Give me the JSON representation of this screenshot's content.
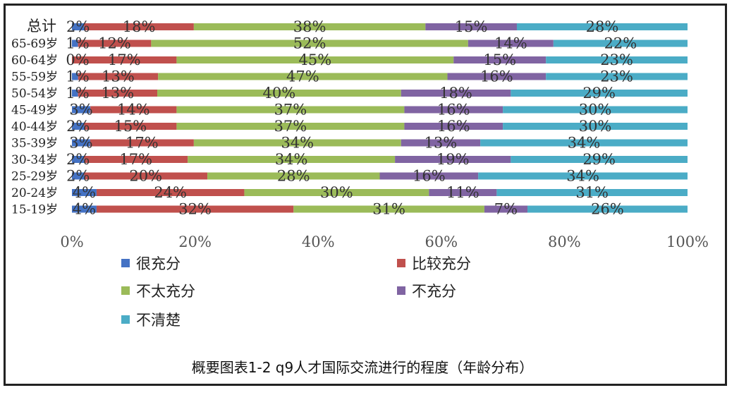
{
  "chart_data": {
    "type": "bar",
    "orientation": "horizontal",
    "stacked": "percent",
    "title": "",
    "caption": "概要图表1-2  q9人才国际交流进行的程度（年龄分布）",
    "categories": [
      "总计",
      "65-69岁",
      "60-64岁",
      "55-59岁",
      "50-54岁",
      "45-49岁",
      "40-44岁",
      "35-39岁",
      "30-34岁",
      "25-29岁",
      "20-24岁",
      "15-19岁"
    ],
    "series": [
      {
        "name": "很充分",
        "color": "#4472C4",
        "values": [
          2,
          1,
          0,
          1,
          1,
          3,
          2,
          3,
          2,
          2,
          4,
          4
        ]
      },
      {
        "name": "比较充分",
        "color": "#C0504D",
        "values": [
          18,
          12,
          17,
          13,
          13,
          14,
          15,
          17,
          17,
          20,
          24,
          32
        ]
      },
      {
        "name": "不太充分",
        "color": "#9BBB59",
        "values": [
          38,
          52,
          45,
          47,
          40,
          37,
          37,
          34,
          34,
          28,
          30,
          31
        ]
      },
      {
        "name": "不充分",
        "color": "#8064A2",
        "values": [
          15,
          14,
          15,
          16,
          18,
          16,
          16,
          13,
          19,
          16,
          11,
          7
        ]
      },
      {
        "name": "不清楚",
        "color": "#4BACC6",
        "values": [
          28,
          22,
          23,
          23,
          29,
          30,
          30,
          34,
          29,
          34,
          31,
          26
        ]
      }
    ],
    "value_suffix": "%",
    "xlim": [
      0,
      100
    ],
    "xticks": [
      "0%",
      "20%",
      "40%",
      "60%",
      "80%",
      "100%"
    ],
    "xlabel": "",
    "ylabel": "",
    "grid": false,
    "legend_position": "bottom"
  }
}
